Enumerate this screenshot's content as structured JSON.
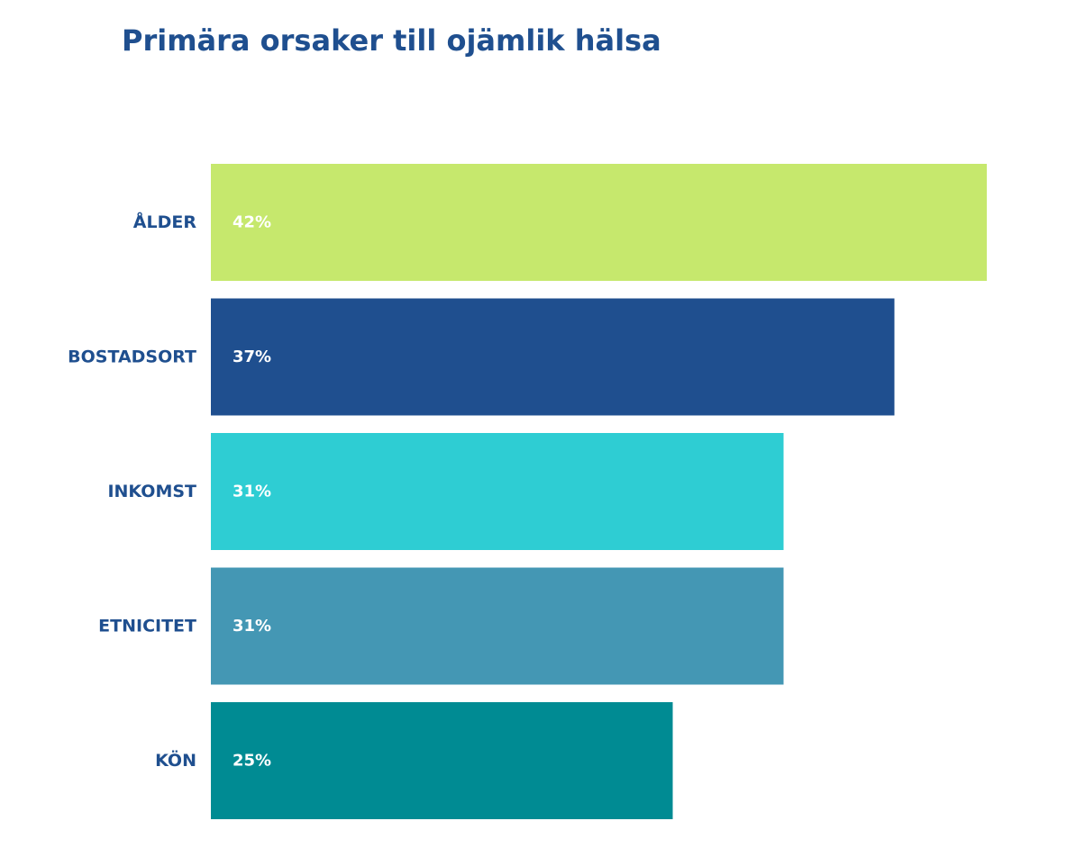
{
  "chart_data": {
    "type": "bar",
    "orientation": "horizontal",
    "title": "Primära orsaker till ojämlik hälsa",
    "categories": [
      "ÅLDER",
      "BOSTADSORT",
      "INKOMST",
      "ETNICITET",
      "KÖN"
    ],
    "values": [
      42,
      37,
      31,
      31,
      25
    ],
    "value_labels": [
      "42%",
      "37%",
      "31%",
      "31%",
      "25%"
    ],
    "bar_colors": [
      "#c6e86d",
      "#1f4f8f",
      "#2ecdd3",
      "#4497b4",
      "#008b93"
    ],
    "label_color": "#1f4f8f",
    "value_label_color": "#ffffff",
    "grid": false,
    "legend": "none"
  }
}
